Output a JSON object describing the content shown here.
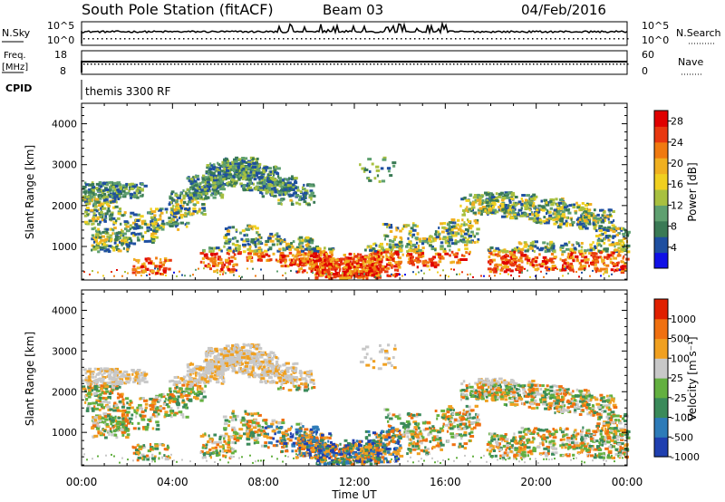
{
  "header": {
    "station": "South Pole Station (fitACF)",
    "beam": "Beam 03",
    "date": "04/Feb/2016"
  },
  "top_panels": {
    "nsky": {
      "label": "N.Sky",
      "tick_top": "10^5",
      "tick_bottom": "10^0"
    },
    "nsearch": {
      "label": "N.Search",
      "tick_top": "10^5",
      "tick_bottom": "10^0"
    },
    "freq": {
      "label_line1": "Freq.",
      "label_line2": "[MHz]",
      "tick_top": "18",
      "tick_bottom": "8"
    },
    "nave": {
      "label": "Nave",
      "tick_top": "60",
      "tick_bottom": "0"
    },
    "cpid": {
      "label": "CPID",
      "value": "themis 3300 RF"
    }
  },
  "chart_data": [
    {
      "type": "heatmap",
      "name": "power-panel",
      "ylabel": "Slant Range [km]",
      "xlabel": "",
      "y_ticks": [
        "1000",
        "2000",
        "3000",
        "4000"
      ],
      "x_ticks": [],
      "xlim": [
        0,
        24
      ],
      "ylim": [
        180,
        4500
      ],
      "colorbar": {
        "label": "Power [dB]",
        "ticks": [
          "4",
          "8",
          "12",
          "16",
          "20",
          "24",
          "28"
        ],
        "colors": [
          "#1010e6",
          "#1e4fa0",
          "#3a7a55",
          "#5fa070",
          "#a8c040",
          "#f0d020",
          "#f0b020",
          "#f07a10",
          "#e83810",
          "#e00000"
        ],
        "range": [
          0,
          30
        ]
      }
    },
    {
      "type": "heatmap",
      "name": "velocity-panel",
      "ylabel": "Slant Range [km]",
      "xlabel": "Time UT",
      "y_ticks": [
        "1000",
        "2000",
        "3000",
        "4000"
      ],
      "x_ticks": [
        "00:00",
        "04:00",
        "08:00",
        "12:00",
        "16:00",
        "20:00",
        "00:00"
      ],
      "xlim": [
        0,
        24
      ],
      "ylim": [
        180,
        4500
      ],
      "colorbar": {
        "label": "Velocity [m s⁻¹]",
        "ticks": [
          "1000",
          "500",
          "100",
          "25",
          "-25",
          "-100",
          "-500",
          "-1000"
        ],
        "colors": [
          "#1f3fb0",
          "#2d7bb8",
          "#3a8a5a",
          "#63b040",
          "#c8c8c8",
          "#f0a020",
          "#f07010",
          "#e02000"
        ]
      }
    }
  ]
}
